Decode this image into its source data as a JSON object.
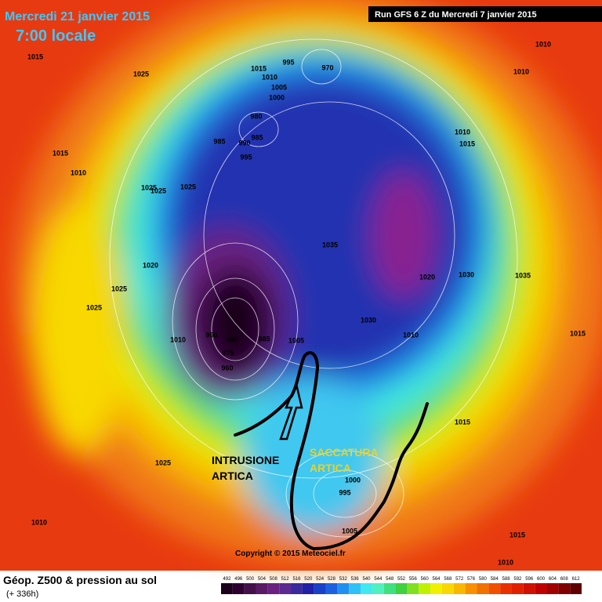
{
  "header": {
    "date": "Mercredi 21 janvier 2015",
    "time": "7:00 locale",
    "run": "Run GFS 6 Z du Mercredi 7 janvier 2015"
  },
  "annotations": {
    "intrusion": [
      "INTRUSIONE",
      "ARTICA"
    ],
    "trough": [
      "SACCATURA",
      "ARTICA"
    ]
  },
  "isobar_labels": [
    1015,
    1025,
    1015,
    1010,
    995,
    970,
    1005,
    1000,
    980,
    985,
    990,
    985,
    995,
    1015,
    1010,
    1025,
    1025,
    1025,
    1010,
    1015,
    1010,
    1010,
    1035,
    1020,
    1025,
    1025,
    1010,
    990,
    980,
    985,
    975,
    960,
    1005,
    1030,
    1010,
    1020,
    1030,
    1035,
    1015,
    1015,
    1025,
    1010,
    1000,
    995,
    1005,
    1015,
    1010
  ],
  "copyright": "Copyright © 2015 Meteociel.fr",
  "footer": {
    "title": "Géop. Z500 & pression au sol",
    "lead": "(+ 336h)"
  },
  "scale": {
    "values": [
      492,
      496,
      500,
      504,
      508,
      512,
      516,
      520,
      524,
      528,
      532,
      536,
      540,
      544,
      548,
      552,
      556,
      560,
      564,
      568,
      572,
      576,
      580,
      584,
      588,
      592,
      596,
      600,
      604,
      608,
      612
    ],
    "colors": [
      "#1a001a",
      "#2d0030",
      "#45104a",
      "#5a1a66",
      "#6a2080",
      "#5c2a90",
      "#3a2a9c",
      "#2020a8",
      "#1840c8",
      "#1a60e0",
      "#2090f0",
      "#30c0f8",
      "#40e8f0",
      "#50f0c0",
      "#40e080",
      "#40d040",
      "#80e020",
      "#c0f000",
      "#f0f000",
      "#f8d800",
      "#f8b800",
      "#f89000",
      "#f07000",
      "#f05000",
      "#e83000",
      "#e02000",
      "#d01000",
      "#c00000",
      "#a00000",
      "#800000",
      "#600000"
    ]
  }
}
